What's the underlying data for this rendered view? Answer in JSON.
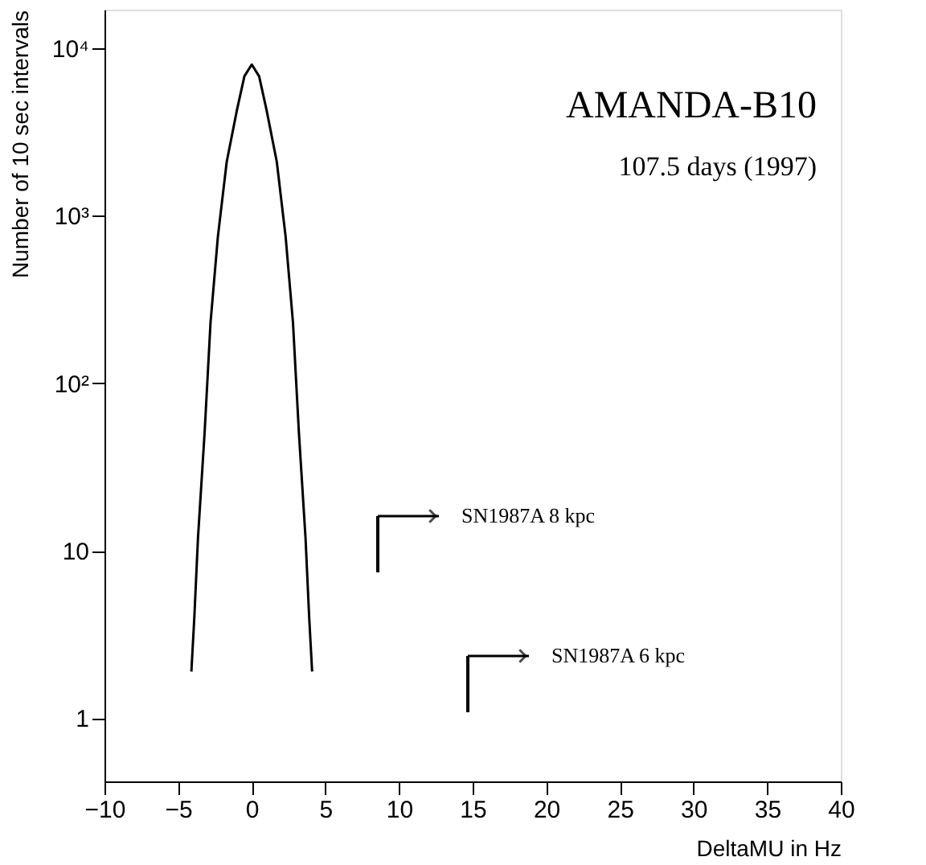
{
  "chart_data": {
    "type": "line",
    "xlabel": "DeltaMU in Hz",
    "ylabel": "Number of 10 sec intervals",
    "x": [
      -4.1,
      -3.9,
      -3.65,
      -3.2,
      -2.8,
      -2.3,
      -1.7,
      -1.0,
      -0.5,
      0,
      0.5,
      1.0,
      1.7,
      2.3,
      2.8,
      3.2,
      3.65,
      3.9,
      4.1
    ],
    "series": [
      {
        "color": "#000000",
        "values": [
          1.9,
          4,
          12,
          51,
          230,
          750,
          2100,
          4300,
          6800,
          8000,
          6800,
          4300,
          2100,
          750,
          230,
          51,
          12,
          4,
          1.9
        ]
      }
    ],
    "xlim": [
      -10,
      40
    ],
    "xticks": [
      -10,
      -5,
      0,
      5,
      10,
      15,
      20,
      25,
      30,
      35,
      40
    ],
    "ylim": [
      0.42,
      17000
    ],
    "yticks": [
      1,
      10,
      {
        "value": 100,
        "label": "10²"
      },
      {
        "value": 1000,
        "label": "10³"
      },
      {
        "value": 10000,
        "label": "10⁴"
      }
    ],
    "log": "y",
    "grid": false,
    "marker": "none",
    "line_style": "solid",
    "annotations": [
      "AMANDA-B10",
      "107.5 days (1997)",
      "SN1987A  8 kpc",
      "SN1987A  6 kpc"
    ]
  }
}
